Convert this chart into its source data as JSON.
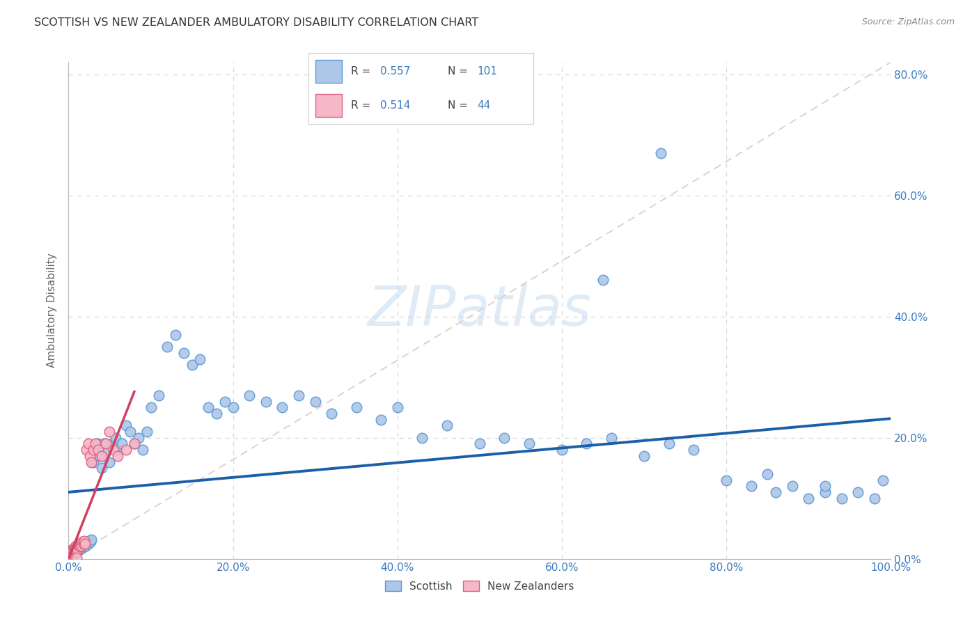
{
  "title": "SCOTTISH VS NEW ZEALANDER AMBULATORY DISABILITY CORRELATION CHART",
  "source": "Source: ZipAtlas.com",
  "ylabel": "Ambulatory Disability",
  "scottish_color": "#aec6e8",
  "nz_color": "#f4b8c8",
  "scottish_edge": "#5b9bd5",
  "nz_edge": "#e06080",
  "trend_blue": "#1a5fa8",
  "trend_pink": "#d04060",
  "trend_dashed_color": "#d0b0b8",
  "watermark": "ZIPatlas",
  "background_color": "#ffffff",
  "grid_color": "#d8d8d8",
  "tick_color": "#3a7bbf",
  "label_color": "#666666",
  "title_color": "#333333",
  "source_color": "#888888",
  "scottish_x": [
    0.001,
    0.002,
    0.002,
    0.003,
    0.003,
    0.003,
    0.004,
    0.004,
    0.005,
    0.005,
    0.006,
    0.006,
    0.007,
    0.007,
    0.008,
    0.008,
    0.009,
    0.009,
    0.01,
    0.01,
    0.011,
    0.011,
    0.012,
    0.013,
    0.013,
    0.014,
    0.015,
    0.016,
    0.017,
    0.018,
    0.019,
    0.02,
    0.021,
    0.022,
    0.024,
    0.025,
    0.027,
    0.028,
    0.03,
    0.032,
    0.035,
    0.038,
    0.04,
    0.043,
    0.046,
    0.05,
    0.053,
    0.057,
    0.06,
    0.065,
    0.07,
    0.075,
    0.08,
    0.085,
    0.09,
    0.095,
    0.1,
    0.11,
    0.12,
    0.13,
    0.14,
    0.15,
    0.16,
    0.17,
    0.18,
    0.19,
    0.2,
    0.22,
    0.24,
    0.26,
    0.28,
    0.3,
    0.32,
    0.35,
    0.38,
    0.4,
    0.43,
    0.46,
    0.5,
    0.53,
    0.56,
    0.6,
    0.63,
    0.66,
    0.7,
    0.73,
    0.76,
    0.8,
    0.83,
    0.86,
    0.88,
    0.9,
    0.92,
    0.94,
    0.96,
    0.98,
    0.99,
    0.65,
    0.72,
    0.85,
    0.92
  ],
  "scottish_y": [
    0.005,
    0.008,
    0.012,
    0.006,
    0.01,
    0.015,
    0.008,
    0.013,
    0.007,
    0.011,
    0.009,
    0.014,
    0.01,
    0.016,
    0.012,
    0.018,
    0.011,
    0.017,
    0.013,
    0.019,
    0.012,
    0.02,
    0.015,
    0.018,
    0.022,
    0.016,
    0.02,
    0.025,
    0.018,
    0.023,
    0.02,
    0.025,
    0.022,
    0.028,
    0.025,
    0.03,
    0.028,
    0.032,
    0.16,
    0.18,
    0.19,
    0.17,
    0.15,
    0.19,
    0.18,
    0.16,
    0.19,
    0.2,
    0.18,
    0.19,
    0.22,
    0.21,
    0.19,
    0.2,
    0.18,
    0.21,
    0.25,
    0.27,
    0.35,
    0.37,
    0.34,
    0.32,
    0.33,
    0.25,
    0.24,
    0.26,
    0.25,
    0.27,
    0.26,
    0.25,
    0.27,
    0.26,
    0.24,
    0.25,
    0.23,
    0.25,
    0.2,
    0.22,
    0.19,
    0.2,
    0.19,
    0.18,
    0.19,
    0.2,
    0.17,
    0.19,
    0.18,
    0.13,
    0.12,
    0.11,
    0.12,
    0.1,
    0.11,
    0.1,
    0.11,
    0.1,
    0.13,
    0.46,
    0.67,
    0.14,
    0.12
  ],
  "nz_x": [
    0.001,
    0.002,
    0.002,
    0.003,
    0.003,
    0.004,
    0.004,
    0.005,
    0.005,
    0.006,
    0.006,
    0.007,
    0.007,
    0.008,
    0.008,
    0.009,
    0.009,
    0.01,
    0.01,
    0.011,
    0.012,
    0.013,
    0.014,
    0.015,
    0.016,
    0.017,
    0.018,
    0.019,
    0.02,
    0.022,
    0.024,
    0.026,
    0.028,
    0.03,
    0.033,
    0.036,
    0.04,
    0.045,
    0.05,
    0.055,
    0.06,
    0.07,
    0.08,
    0.01
  ],
  "nz_y": [
    0.004,
    0.007,
    0.01,
    0.006,
    0.012,
    0.008,
    0.013,
    0.007,
    0.015,
    0.009,
    0.016,
    0.011,
    0.018,
    0.013,
    0.02,
    0.014,
    0.022,
    0.012,
    0.018,
    0.016,
    0.022,
    0.025,
    0.02,
    0.025,
    0.022,
    0.028,
    0.025,
    0.03,
    0.025,
    0.18,
    0.19,
    0.17,
    0.16,
    0.18,
    0.19,
    0.18,
    0.17,
    0.19,
    0.21,
    0.18,
    0.17,
    0.18,
    0.19,
    0.002
  ],
  "xlim": [
    0.0,
    1.0
  ],
  "ylim": [
    0.0,
    0.82
  ],
  "xticks": [
    0.0,
    0.2,
    0.4,
    0.6,
    0.8,
    1.0
  ],
  "xtick_labels": [
    "0.0%",
    "20.0%",
    "40.0%",
    "60.0%",
    "80.0%",
    "100.0%"
  ],
  "yticks": [
    0.0,
    0.2,
    0.4,
    0.6,
    0.8
  ],
  "ytick_labels": [
    "0.0%",
    "20.0%",
    "40.0%",
    "60.0%",
    "80.0%"
  ]
}
